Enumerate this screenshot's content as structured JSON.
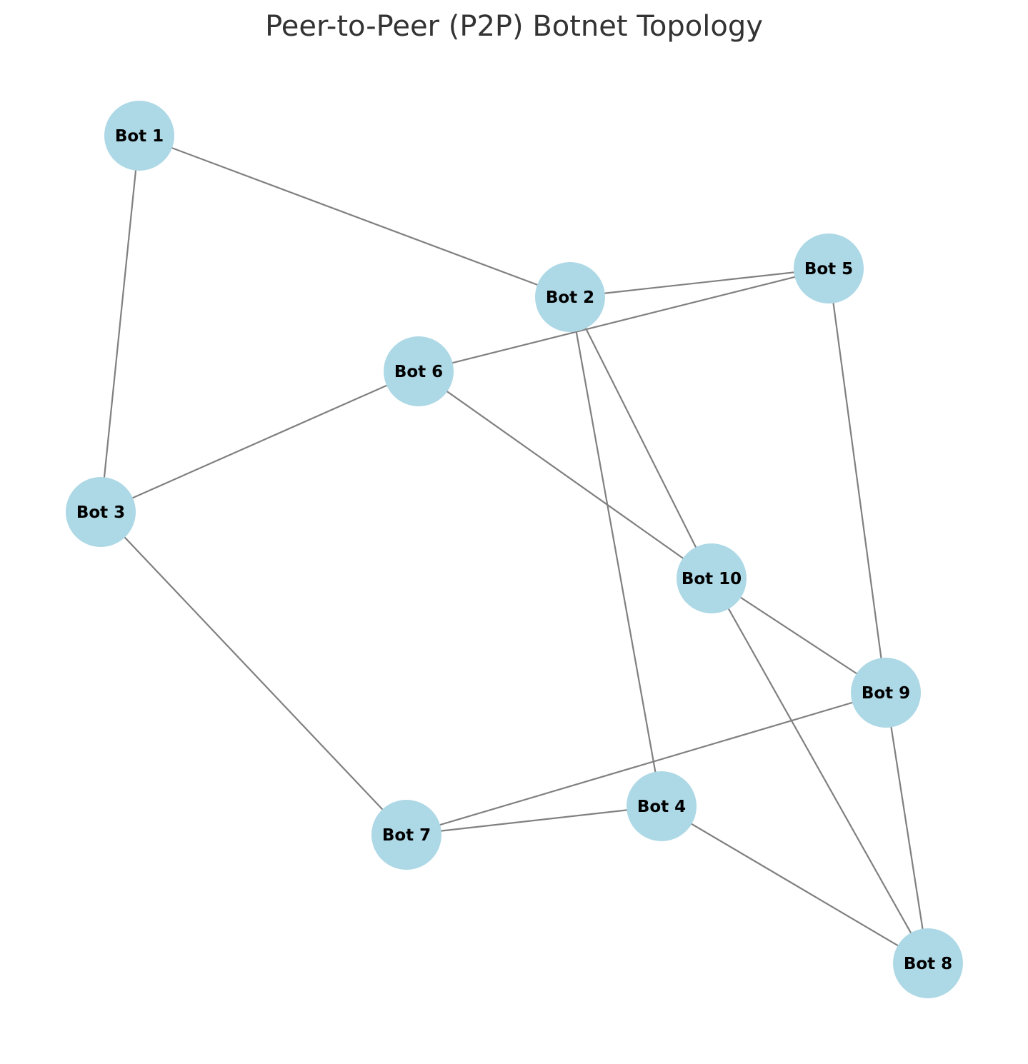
{
  "title": "Peer-to-Peer (P2P) Botnet Topology",
  "colors": {
    "node": "#add8e6",
    "edge": "#808080",
    "label": "#000000",
    "title": "#333333"
  },
  "nodes": [
    "Bot 1",
    "Bot 2",
    "Bot 3",
    "Bot 4",
    "Bot 5",
    "Bot 6",
    "Bot 7",
    "Bot 8",
    "Bot 9",
    "Bot 10"
  ],
  "edges": [
    [
      "Bot 1",
      "Bot 2"
    ],
    [
      "Bot 1",
      "Bot 3"
    ],
    [
      "Bot 2",
      "Bot 5"
    ],
    [
      "Bot 2",
      "Bot 4"
    ],
    [
      "Bot 2",
      "Bot 10"
    ],
    [
      "Bot 5",
      "Bot 6"
    ],
    [
      "Bot 5",
      "Bot 9"
    ],
    [
      "Bot 6",
      "Bot 3"
    ],
    [
      "Bot 6",
      "Bot 10"
    ],
    [
      "Bot 3",
      "Bot 7"
    ],
    [
      "Bot 10",
      "Bot 9"
    ],
    [
      "Bot 10",
      "Bot 8"
    ],
    [
      "Bot 9",
      "Bot 7"
    ],
    [
      "Bot 9",
      "Bot 8"
    ],
    [
      "Bot 7",
      "Bot 4"
    ],
    [
      "Bot 4",
      "Bot 8"
    ]
  ]
}
